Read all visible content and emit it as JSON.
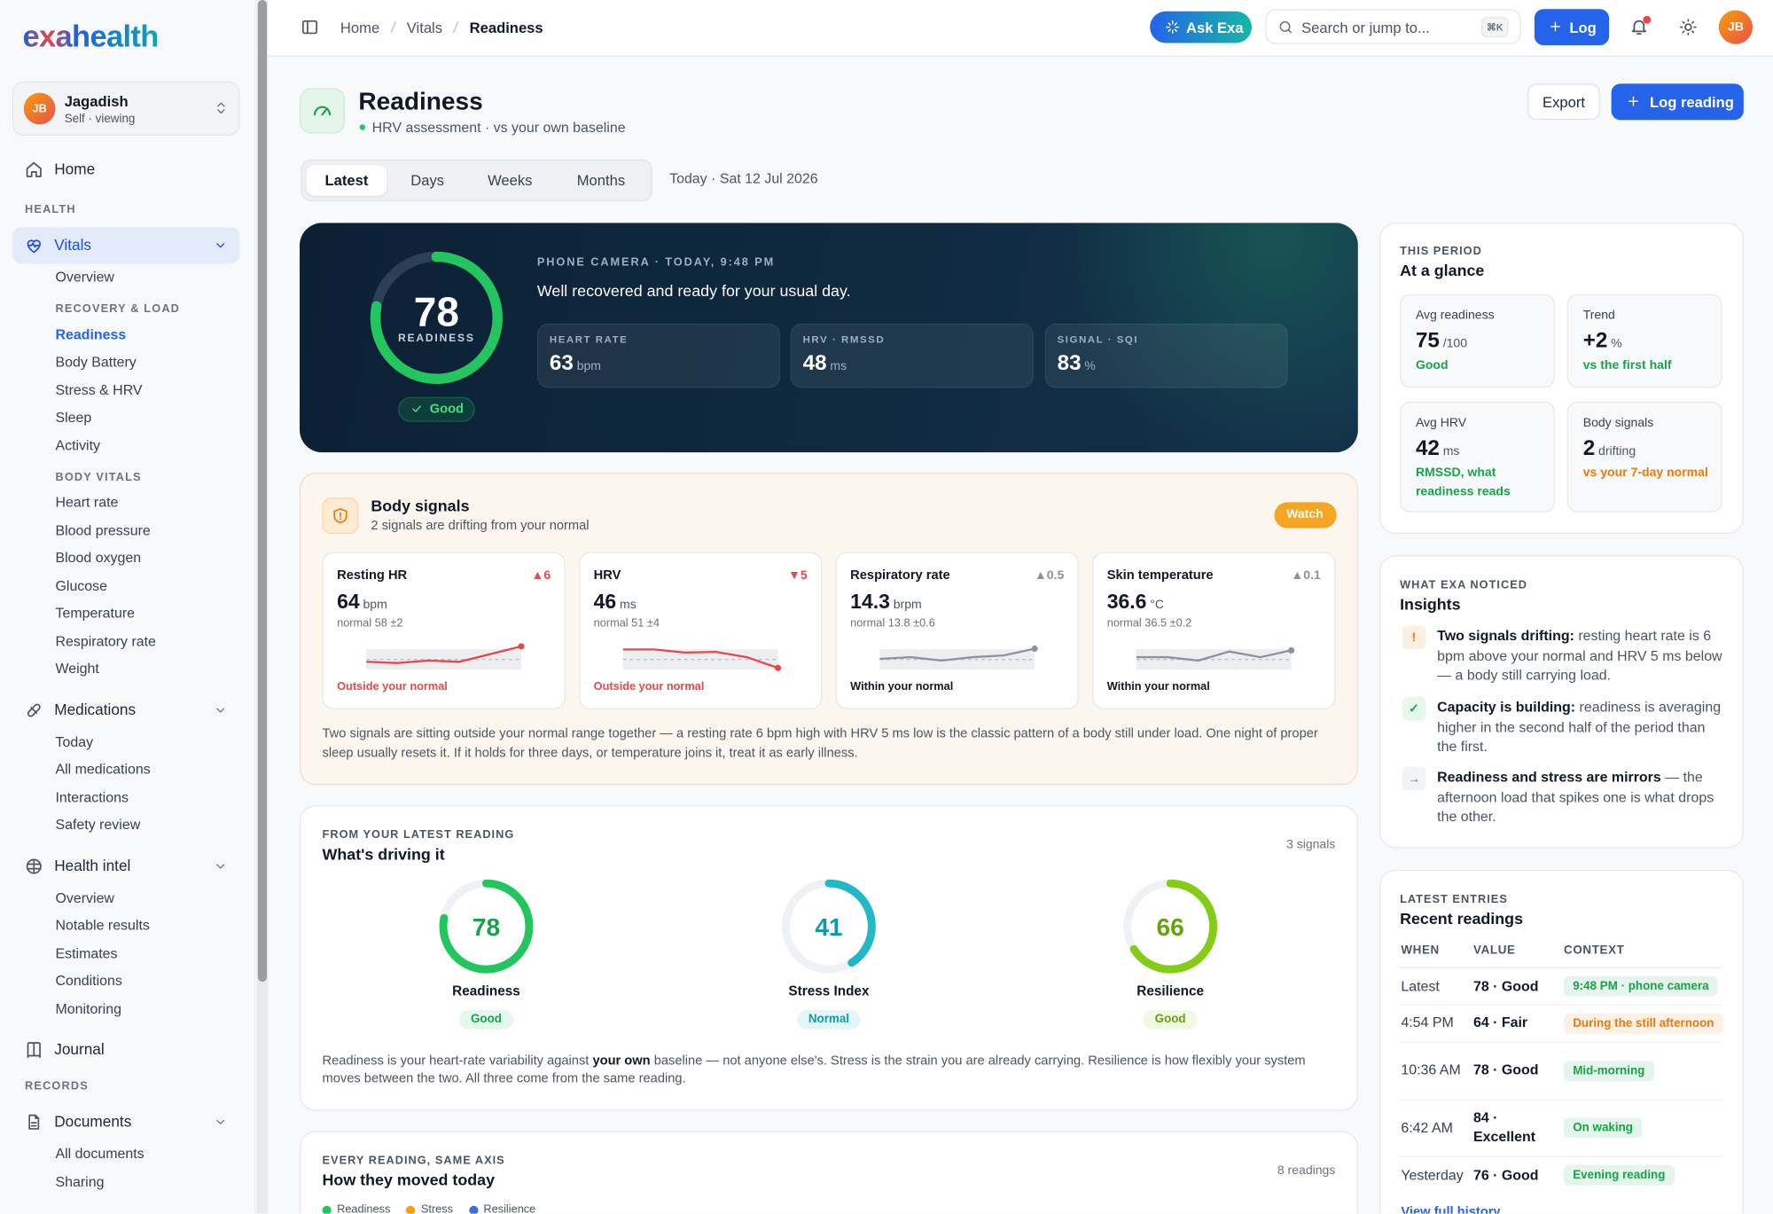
{
  "brand": "exahealth",
  "user": {
    "initials": "JB",
    "name": "Jagadish",
    "role": "Self · viewing"
  },
  "nav": {
    "home": "Home",
    "health_heading": "HEALTH",
    "vitals": {
      "label": "Vitals",
      "overview": "Overview",
      "recovery": {
        "heading": "RECOVERY & LOAD",
        "items": [
          "Readiness",
          "Body Battery",
          "Stress & HRV",
          "Sleep",
          "Activity"
        ]
      },
      "body": {
        "heading": "BODY VITALS",
        "items": [
          "Heart rate",
          "Blood pressure",
          "Blood oxygen",
          "Glucose",
          "Temperature",
          "Respiratory rate",
          "Weight"
        ]
      }
    },
    "medications": {
      "label": "Medications",
      "items": [
        "Today",
        "All medications",
        "Interactions",
        "Safety review"
      ]
    },
    "health_intel": {
      "label": "Health intel",
      "items": [
        "Overview",
        "Notable results",
        "Estimates",
        "Conditions",
        "Monitoring"
      ]
    },
    "journal": "Journal",
    "records_heading": "RECORDS",
    "documents": {
      "label": "Documents",
      "items": [
        "All documents",
        "Sharing"
      ]
    }
  },
  "topbar": {
    "breadcrumb": [
      "Home",
      "Vitals",
      "Readiness"
    ],
    "ask": "Ask Exa",
    "search": "Search or jump to...",
    "shortcut": "⌘K",
    "log": "Log",
    "avatar": "JB"
  },
  "header": {
    "title": "Readiness",
    "subtitle": "HRV assessment · vs your own baseline",
    "export": "Export",
    "log_reading": "Log reading",
    "tabs": [
      "Latest",
      "Days",
      "Weeks",
      "Months"
    ],
    "date": "Today · Sat 12 Jul 2026"
  },
  "hero": {
    "score": 78,
    "lim": [
      0,
      100
    ],
    "label": "READINESS",
    "status": "Good",
    "source": "PHONE CAMERA · TODAY, 9:48 PM",
    "message": "Well recovered and ready for your usual day.",
    "metrics": [
      {
        "label": "HEART RATE",
        "value": 63,
        "unit": "bpm"
      },
      {
        "label": "HRV · RMSSD",
        "value": 48,
        "unit": "ms"
      },
      {
        "label": "SIGNAL · SQI",
        "value": 83,
        "unit": "%"
      }
    ]
  },
  "body_signals": {
    "title": "Body signals",
    "subtitle": "2 signals are drifting from your normal",
    "badge": "Watch",
    "cards": [
      {
        "name": "Resting HR",
        "delta": "▲6",
        "value": 64,
        "unit": "bpm",
        "normal": "normal 58 ±2",
        "status": "Outside your normal",
        "color": "#e5484d",
        "status_color": "#e5484d",
        "trend": [
          59,
          58.6,
          59.4,
          59,
          61.5,
          64
        ],
        "trend_ylim": [
          55,
          66
        ]
      },
      {
        "name": "HRV",
        "delta": "▼5",
        "value": 46,
        "unit": "ms",
        "normal": "normal 51 ±4",
        "status": "Outside your normal",
        "color": "#e5484d",
        "status_color": "#e5484d",
        "trend": [
          52,
          52,
          51,
          51.2,
          49.5,
          46
        ],
        "trend_ylim": [
          44,
          55
        ]
      },
      {
        "name": "Respiratory rate",
        "delta": "▲0.5",
        "value": 14.3,
        "unit": "brpm",
        "normal": "normal 13.8 ±0.6",
        "status": "Within your normal",
        "color": "#8b93a1",
        "status_color": "#111827",
        "trend": [
          13.7,
          13.8,
          13.6,
          13.8,
          13.9,
          14.3
        ],
        "trend_ylim": [
          12.8,
          14.8
        ]
      },
      {
        "name": "Skin temperature",
        "delta": "▲0.1",
        "value": 36.6,
        "unit": "°C",
        "normal": "normal 36.5 ±0.2",
        "status": "Within your normal",
        "color": "#8b93a1",
        "status_color": "#111827",
        "trend": [
          36.5,
          36.5,
          36.44,
          36.6,
          36.5,
          36.62
        ],
        "trend_ylim": [
          36.2,
          36.8
        ]
      }
    ],
    "note": "Two signals are sitting outside your normal range together — a resting rate 6 bpm high with HRV 5 ms low is the classic pattern of a body still under load. One night of proper sleep usually resets it. If it holds for three days, or temperature joins it, treat it as early illness."
  },
  "driving": {
    "heading": "FROM YOUR LATEST READING",
    "title": "What's driving it",
    "count": "3 signals",
    "lim": [
      0,
      100
    ],
    "rings": [
      {
        "value": 78,
        "label": "Readiness",
        "status": "Good",
        "color": "#22c55e",
        "text_color": "#16a34a"
      },
      {
        "value": 41,
        "label": "Stress Index",
        "status": "Normal",
        "color": "#22b8c8",
        "text_color": "#0e9aaa"
      },
      {
        "value": 66,
        "label": "Resilience",
        "status": "Good",
        "color": "#84cc16",
        "text_color": "#65a30d"
      }
    ],
    "note": [
      "Readiness is your heart-rate variability against ",
      "your own",
      " baseline — not anyone else's. Stress is the strain you are already carrying. Resilience is how flexibly your system moves between the two. All three come from the same reading."
    ]
  },
  "moved": {
    "heading": "EVERY READING, SAME AXIS",
    "title": "How they moved today",
    "count": "8 readings",
    "series": [
      {
        "name": "Readiness",
        "color": "#22c55e"
      },
      {
        "name": "Stress",
        "color": "#f59e0b"
      },
      {
        "name": "Resilience",
        "color": "#3b6fe0"
      }
    ]
  },
  "glance": {
    "heading": "THIS PERIOD",
    "title": "At a glance",
    "tiles": [
      {
        "label": "Avg readiness",
        "value": 75,
        "unit": "/100",
        "note": "Good",
        "note_color": "#16a34a"
      },
      {
        "label": "Trend",
        "value": "+2",
        "unit": "%",
        "note": "vs the first half",
        "note_color": "#16a34a"
      },
      {
        "label": "Avg HRV",
        "value": 42,
        "unit": "ms",
        "note": "RMSSD, what readiness reads",
        "note_color": "#16a34a"
      },
      {
        "label": "Body signals",
        "value": 2,
        "unit": "drifting",
        "note": "vs your 7-day normal",
        "note_color": "#ea7a0b"
      }
    ]
  },
  "insights": {
    "heading": "WHAT EXA NOTICED",
    "title": "Insights",
    "items": [
      {
        "icon": "!",
        "icon_color": "#ea7a0b",
        "icon_bg": "#fdf0e1",
        "lead": "Two signals drifting:",
        "text": " resting heart rate is 6 bpm above your normal and HRV 5 ms below — a body still carrying load."
      },
      {
        "icon": "✓",
        "icon_color": "#16a34a",
        "icon_bg": "#e7f7ec",
        "lead": "Capacity is building:",
        "text": " readiness is averaging higher in the second half of the period than the first."
      },
      {
        "icon": "→",
        "icon_color": "#6b7280",
        "icon_bg": "#f1f3f5",
        "lead": "Readiness and stress are mirrors",
        "text": " — the afternoon load that spikes one is what drops the other."
      }
    ]
  },
  "recent": {
    "heading": "LATEST ENTRIES",
    "title": "Recent readings",
    "columns": [
      "WHEN",
      "VALUE",
      "CONTEXT"
    ],
    "rows": [
      [
        "Latest",
        "78 · Good",
        "9:48 PM · phone camera"
      ],
      [
        "4:54 PM",
        "64 · Fair",
        "During the still afternoon"
      ],
      [
        "10:36 AM",
        "78 · Good",
        "Mid-morning"
      ],
      [
        "6:42 AM",
        "84 · Excellent",
        "On waking"
      ],
      [
        "Yesterday",
        "76 · Good",
        "Evening reading"
      ]
    ],
    "context_colors": [
      "#16a34a",
      "#ea7a0b",
      "#16a34a",
      "#16a34a",
      "#16a34a"
    ],
    "link": "View full history"
  }
}
